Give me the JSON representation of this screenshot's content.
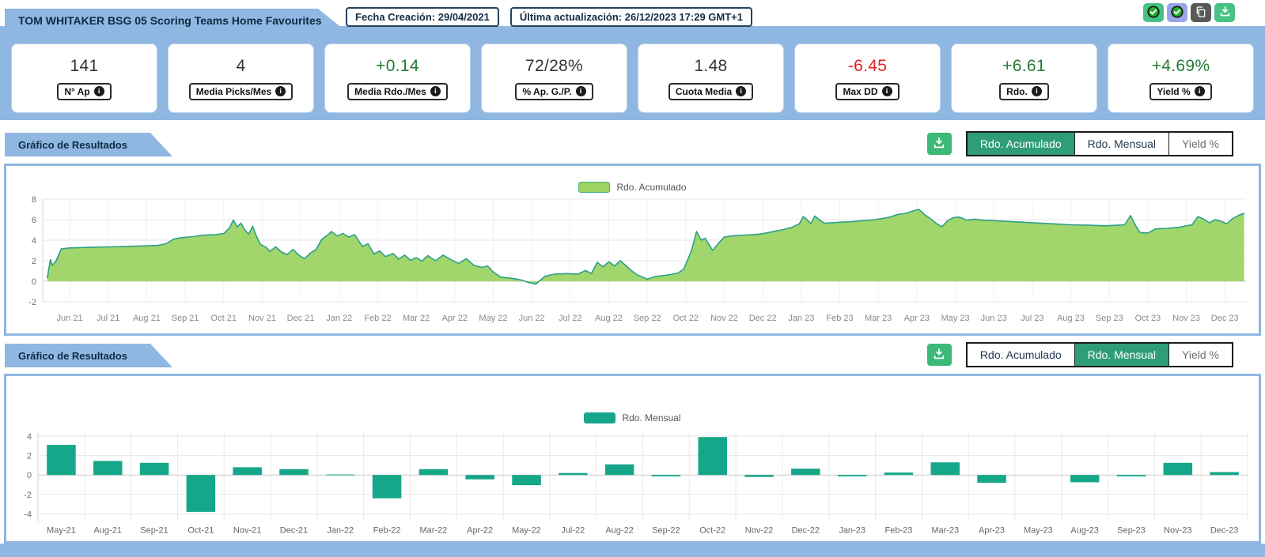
{
  "header": {
    "title": "TOM WHITAKER BSG 05 Scoring Teams Home Favourites",
    "created_label": "Fecha Creación: 29/04/2021",
    "updated_label": "Última actualización: 26/12/2023 17:29 GMT+1",
    "action_icons": [
      "verified-check",
      "verified-check-alt",
      "copy",
      "download"
    ]
  },
  "stats": [
    {
      "value": "141",
      "label": "N° Ap",
      "tone": "dark"
    },
    {
      "value": "4",
      "label": "Media Picks/Mes",
      "tone": "dark"
    },
    {
      "value": "+0.14",
      "label": "Media Rdo./Mes",
      "tone": "green"
    },
    {
      "value": "72/28%",
      "label": "% Ap. G./P.",
      "tone": "dark"
    },
    {
      "value": "1.48",
      "label": "Cuota Media",
      "tone": "dark"
    },
    {
      "value": "-6.45",
      "label": "Max DD",
      "tone": "red"
    },
    {
      "value": "+6.61",
      "label": "Rdo.",
      "tone": "green"
    },
    {
      "value": "+4.69%",
      "label": "Yield %",
      "tone": "green"
    }
  ],
  "sections": [
    {
      "title": "Gráfico de Resultados",
      "legend": "Rdo. Acumulado",
      "tabs": [
        {
          "label": "Rdo. Acumulado",
          "active": true,
          "muted": false
        },
        {
          "label": "Rdo. Mensual",
          "active": false,
          "muted": false
        },
        {
          "label": "Yield %",
          "active": false,
          "muted": true
        }
      ]
    },
    {
      "title": "Gráfico de Resultados",
      "legend": "Rdo. Mensual",
      "tabs": [
        {
          "label": "Rdo. Acumulado",
          "active": false,
          "muted": false
        },
        {
          "label": "Rdo. Mensual",
          "active": true,
          "muted": false
        },
        {
          "label": "Yield %",
          "active": false,
          "muted": true
        }
      ]
    }
  ],
  "colors": {
    "band_blue": "#8fb7e1",
    "area_fill": "#9bd463",
    "area_stroke": "#2ca089",
    "bar_fill": "#16a78a",
    "tab_active": "#2f9e77",
    "download_green": "#3cb878",
    "positive_green": "#257a36",
    "negative_red": "#e01f1f"
  },
  "chart_data": [
    {
      "type": "area",
      "title": "Rdo. Acumulado",
      "legend": "Rdo. Acumulado",
      "y_ticks": [
        8,
        6,
        4,
        2,
        0,
        -2
      ],
      "ylim": [
        -2,
        8
      ],
      "x_tick_labels": [
        "Jun 21",
        "Jul 21",
        "Aug 21",
        "Sep 21",
        "Oct 21",
        "Nov 21",
        "Dec 21",
        "Jan 22",
        "Feb 22",
        "Mar 22",
        "Apr 22",
        "May 22",
        "Jun 22",
        "Jul 22",
        "Aug 22",
        "Sep 22",
        "Oct 22",
        "Nov 22",
        "Dec 22",
        "Jan 23",
        "Feb 23",
        "Mar 23",
        "Apr 23",
        "May 23",
        "Jun 23",
        "Jul 23",
        "Aug 23",
        "Sep 23",
        "Oct 23",
        "Nov 23",
        "Dec 23"
      ],
      "x_domain": [
        -0.7,
        30.55
      ],
      "points": [
        [
          -0.58,
          0.35
        ],
        [
          -0.5,
          2.1
        ],
        [
          -0.45,
          1.55
        ],
        [
          -0.35,
          2.0
        ],
        [
          -0.22,
          3.15
        ],
        [
          0.0,
          3.25
        ],
        [
          0.5,
          3.3
        ],
        [
          1.0,
          3.35
        ],
        [
          1.5,
          3.4
        ],
        [
          2.0,
          3.45
        ],
        [
          2.3,
          3.5
        ],
        [
          2.5,
          3.65
        ],
        [
          2.7,
          4.1
        ],
        [
          2.9,
          4.25
        ],
        [
          3.2,
          4.35
        ],
        [
          3.5,
          4.5
        ],
        [
          3.8,
          4.55
        ],
        [
          4.0,
          4.65
        ],
        [
          4.15,
          5.2
        ],
        [
          4.25,
          5.95
        ],
        [
          4.35,
          5.3
        ],
        [
          4.45,
          5.65
        ],
        [
          4.55,
          5.0
        ],
        [
          4.65,
          4.6
        ],
        [
          4.75,
          5.35
        ],
        [
          4.85,
          4.4
        ],
        [
          4.95,
          3.6
        ],
        [
          5.1,
          3.3
        ],
        [
          5.2,
          2.9
        ],
        [
          5.35,
          3.35
        ],
        [
          5.5,
          2.85
        ],
        [
          5.65,
          2.6
        ],
        [
          5.8,
          3.1
        ],
        [
          5.95,
          2.55
        ],
        [
          6.1,
          2.2
        ],
        [
          6.25,
          2.75
        ],
        [
          6.4,
          3.1
        ],
        [
          6.55,
          4.1
        ],
        [
          6.7,
          4.5
        ],
        [
          6.8,
          4.85
        ],
        [
          6.95,
          4.4
        ],
        [
          7.1,
          4.65
        ],
        [
          7.25,
          4.3
        ],
        [
          7.4,
          4.55
        ],
        [
          7.6,
          3.4
        ],
        [
          7.75,
          3.65
        ],
        [
          7.9,
          2.65
        ],
        [
          8.05,
          2.95
        ],
        [
          8.2,
          2.4
        ],
        [
          8.4,
          2.7
        ],
        [
          8.55,
          2.15
        ],
        [
          8.7,
          2.55
        ],
        [
          8.85,
          2.05
        ],
        [
          9.0,
          2.3
        ],
        [
          9.15,
          1.95
        ],
        [
          9.3,
          2.5
        ],
        [
          9.5,
          2.0
        ],
        [
          9.7,
          2.55
        ],
        [
          9.9,
          2.1
        ],
        [
          10.1,
          1.75
        ],
        [
          10.3,
          2.2
        ],
        [
          10.5,
          1.55
        ],
        [
          10.7,
          1.35
        ],
        [
          10.85,
          1.5
        ],
        [
          11.0,
          0.9
        ],
        [
          11.2,
          0.4
        ],
        [
          11.45,
          0.3
        ],
        [
          11.7,
          0.15
        ],
        [
          11.9,
          -0.1
        ],
        [
          12.1,
          -0.28
        ],
        [
          12.35,
          0.5
        ],
        [
          12.6,
          0.7
        ],
        [
          12.9,
          0.75
        ],
        [
          13.2,
          0.7
        ],
        [
          13.4,
          1.05
        ],
        [
          13.55,
          0.75
        ],
        [
          13.7,
          1.85
        ],
        [
          13.85,
          1.4
        ],
        [
          14.0,
          1.9
        ],
        [
          14.15,
          1.5
        ],
        [
          14.3,
          2.0
        ],
        [
          14.45,
          1.5
        ],
        [
          14.6,
          1.0
        ],
        [
          14.75,
          0.6
        ],
        [
          14.85,
          0.45
        ],
        [
          15.0,
          0.2
        ],
        [
          15.2,
          0.45
        ],
        [
          15.4,
          0.55
        ],
        [
          15.6,
          0.65
        ],
        [
          15.8,
          0.8
        ],
        [
          15.95,
          1.2
        ],
        [
          16.05,
          2.1
        ],
        [
          16.15,
          3.0
        ],
        [
          16.28,
          4.85
        ],
        [
          16.4,
          4.0
        ],
        [
          16.5,
          4.2
        ],
        [
          16.6,
          3.6
        ],
        [
          16.7,
          3.0
        ],
        [
          16.85,
          3.7
        ],
        [
          17.0,
          4.3
        ],
        [
          17.15,
          4.4
        ],
        [
          17.35,
          4.45
        ],
        [
          17.55,
          4.5
        ],
        [
          17.75,
          4.55
        ],
        [
          17.95,
          4.6
        ],
        [
          18.15,
          4.75
        ],
        [
          18.35,
          4.9
        ],
        [
          18.55,
          5.05
        ],
        [
          18.75,
          5.25
        ],
        [
          18.95,
          5.6
        ],
        [
          19.05,
          6.3
        ],
        [
          19.15,
          6.0
        ],
        [
          19.25,
          5.6
        ],
        [
          19.35,
          6.35
        ],
        [
          19.45,
          6.05
        ],
        [
          19.6,
          5.65
        ],
        [
          19.8,
          5.7
        ],
        [
          20.0,
          5.75
        ],
        [
          20.3,
          5.8
        ],
        [
          20.6,
          5.9
        ],
        [
          20.9,
          6.0
        ],
        [
          21.1,
          6.1
        ],
        [
          21.3,
          6.25
        ],
        [
          21.5,
          6.5
        ],
        [
          21.7,
          6.6
        ],
        [
          21.9,
          6.85
        ],
        [
          22.05,
          7.0
        ],
        [
          22.2,
          6.5
        ],
        [
          22.35,
          6.1
        ],
        [
          22.5,
          5.65
        ],
        [
          22.65,
          5.3
        ],
        [
          22.8,
          5.9
        ],
        [
          22.95,
          6.2
        ],
        [
          23.1,
          6.25
        ],
        [
          23.3,
          5.95
        ],
        [
          23.5,
          6.05
        ],
        [
          23.7,
          5.95
        ],
        [
          24.0,
          5.9
        ],
        [
          24.5,
          5.8
        ],
        [
          25.0,
          5.7
        ],
        [
          25.5,
          5.6
        ],
        [
          26.0,
          5.5
        ],
        [
          26.5,
          5.45
        ],
        [
          26.9,
          5.4
        ],
        [
          27.2,
          5.45
        ],
        [
          27.4,
          5.5
        ],
        [
          27.55,
          6.4
        ],
        [
          27.7,
          5.3
        ],
        [
          27.8,
          4.75
        ],
        [
          28.0,
          4.7
        ],
        [
          28.2,
          5.1
        ],
        [
          28.5,
          5.15
        ],
        [
          28.8,
          5.25
        ],
        [
          29.0,
          5.4
        ],
        [
          29.15,
          5.5
        ],
        [
          29.3,
          6.3
        ],
        [
          29.45,
          6.05
        ],
        [
          29.6,
          5.7
        ],
        [
          29.75,
          6.0
        ],
        [
          29.9,
          5.85
        ],
        [
          30.05,
          5.6
        ],
        [
          30.2,
          6.1
        ],
        [
          30.38,
          6.45
        ],
        [
          30.5,
          6.61
        ]
      ]
    },
    {
      "type": "bar",
      "title": "Rdo. Mensual",
      "legend": "Rdo. Mensual",
      "y_ticks": [
        4,
        2,
        0,
        -2,
        -4
      ],
      "ylim": [
        -4,
        4
      ],
      "categories": [
        "May-21",
        "Aug-21",
        "Sep-21",
        "Oct-21",
        "Nov-21",
        "Dec-21",
        "Jan-22",
        "Feb-22",
        "Mar-22",
        "Apr-22",
        "May-22",
        "Jul-22",
        "Aug-22",
        "Sep-22",
        "Oct-22",
        "Nov-22",
        "Dec-22",
        "Jan-23",
        "Feb-23",
        "Mar-23",
        "Apr-23",
        "May-23",
        "Aug-23",
        "Sep-23",
        "Nov-23",
        "Dec-23"
      ],
      "values": [
        3.1,
        1.45,
        1.25,
        -3.8,
        0.8,
        0.6,
        0.05,
        -2.4,
        0.6,
        -0.45,
        -1.05,
        0.2,
        1.1,
        -0.15,
        3.9,
        -0.2,
        0.65,
        -0.15,
        0.25,
        1.3,
        -0.8,
        0.0,
        -0.75,
        -0.15,
        1.25,
        0.3
      ]
    }
  ]
}
